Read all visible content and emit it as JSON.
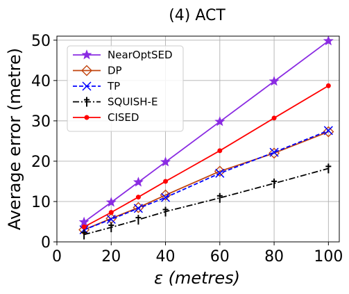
{
  "chart_data": {
    "type": "line",
    "title": "(4) ACT",
    "xlabel_symbol": "ε",
    "xlabel_unit": "(metres)",
    "ylabel": "Average error (metre)",
    "xlim": [
      0,
      104
    ],
    "ylim": [
      0,
      51
    ],
    "xticks": [
      0,
      20,
      40,
      60,
      80,
      100
    ],
    "yticks": [
      0,
      10,
      20,
      30,
      40,
      50
    ],
    "grid": true,
    "legend_position": "upper-left",
    "x": [
      10,
      20,
      30,
      40,
      60,
      80,
      100
    ],
    "series": [
      {
        "name": "NearOptSED",
        "color": "#8A2BE2",
        "marker": "star",
        "dash": "solid",
        "values": [
          4.9,
          9.8,
          14.8,
          19.8,
          29.8,
          39.8,
          49.8
        ]
      },
      {
        "name": "DP",
        "color": "#C1440E",
        "marker": "diamond",
        "dash": "solid",
        "values": [
          3.0,
          5.8,
          8.5,
          11.6,
          17.5,
          22.0,
          27.3
        ]
      },
      {
        "name": "TP",
        "color": "#0000FF",
        "marker": "x",
        "dash": "dashed",
        "values": [
          3.0,
          5.6,
          8.3,
          11.0,
          17.0,
          22.2,
          27.6
        ]
      },
      {
        "name": "SQUISH-E",
        "color": "#000000",
        "marker": "dagger",
        "dash": "dashdot",
        "values": [
          1.8,
          3.6,
          5.5,
          7.5,
          10.9,
          14.5,
          18.2
        ]
      },
      {
        "name": "CISED",
        "color": "#FF0000",
        "marker": "dot",
        "dash": "solid",
        "values": [
          3.7,
          7.3,
          11.1,
          15.0,
          22.6,
          30.7,
          38.7
        ]
      }
    ]
  }
}
